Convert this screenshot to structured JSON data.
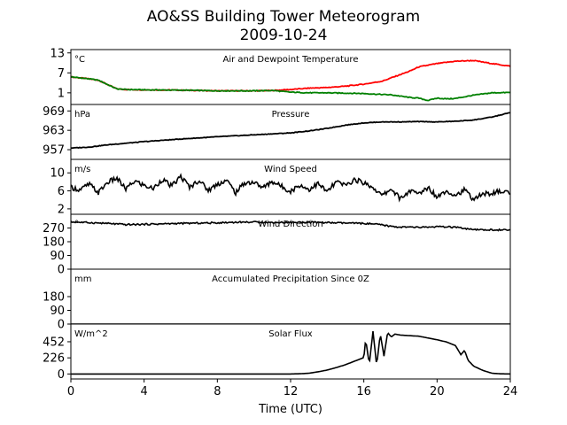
{
  "chart_data": {
    "type": "line",
    "title": "AO&SS Building Tower Meteorogram",
    "subtitle": "2009-10-24",
    "xlabel": "Time (UTC)",
    "xlim": [
      0,
      24
    ],
    "xticks": [
      0,
      4,
      8,
      12,
      16,
      20,
      24
    ],
    "panels": [
      {
        "name": "Air and Dewpoint Temperature",
        "unit": "°C",
        "ylim": [
          -2.5,
          14
        ],
        "yticks": [
          13,
          7,
          1
        ],
        "series": [
          {
            "color": "#ff0000",
            "x": [
              0,
              1,
              1.5,
              2,
              2.5,
              3,
              4,
              6,
              8,
              10,
              11,
              12,
              13,
              14,
              15,
              16,
              17,
              17.5,
              18,
              18.5,
              19,
              20,
              21,
              22,
              23,
              24
            ],
            "y": [
              5.8,
              5.2,
              4.8,
              3.5,
              2.2,
              2.0,
              1.9,
              1.8,
              1.6,
              1.6,
              1.7,
              2.0,
              2.4,
              2.6,
              3.0,
              3.6,
              4.5,
              5.5,
              6.5,
              7.5,
              8.8,
              9.8,
              10.5,
              10.7,
              9.8,
              9.0
            ]
          },
          {
            "color": "#008000",
            "x": [
              0,
              1,
              1.5,
              2,
              2.5,
              3,
              4,
              6,
              8,
              10,
              11,
              12,
              13,
              14,
              15,
              16,
              17,
              17.5,
              18,
              18.5,
              19,
              19.5,
              20,
              20.5,
              21,
              22,
              23,
              24
            ],
            "y": [
              5.8,
              5.2,
              4.8,
              3.5,
              2.2,
              2.0,
              1.9,
              1.8,
              1.6,
              1.6,
              1.7,
              1.2,
              1.0,
              1.0,
              0.9,
              0.8,
              0.5,
              0.4,
              0.0,
              -0.4,
              -0.6,
              -1.3,
              -0.6,
              -0.8,
              -0.7,
              0.3,
              1.0,
              1.1
            ]
          }
        ]
      },
      {
        "name": "Pressure",
        "unit": "hPa",
        "ylim": [
          954,
          971
        ],
        "yticks": [
          969,
          963,
          957
        ],
        "series": [
          {
            "color": "#000000",
            "x": [
              0,
              1,
              2,
              4,
              6,
              8,
              10,
              12,
              13,
              14,
              15,
              16,
              17,
              18,
              19,
              20,
              21,
              22,
              23,
              24
            ],
            "y": [
              957.5,
              957.8,
              958.5,
              959.5,
              960.3,
              961,
              961.6,
              962.2,
              962.8,
              963.6,
              964.6,
              965.3,
              965.6,
              965.6,
              965.7,
              965.6,
              965.8,
              966.2,
              967.1,
              968.5
            ]
          }
        ]
      },
      {
        "name": "Wind Speed",
        "unit": "m/s",
        "ylim": [
          0.8,
          13
        ],
        "yticks": [
          10,
          6,
          2
        ],
        "series": [
          {
            "color": "#000000",
            "x": [
              0,
              0.5,
              1,
              1.5,
              2,
              2.5,
              3,
              3.5,
              4,
              4.5,
              5,
              5.5,
              6,
              6.5,
              7,
              7.5,
              8,
              8.5,
              9,
              9.5,
              10,
              10.5,
              11,
              11.5,
              12,
              12.5,
              13,
              13.5,
              14,
              14.5,
              15,
              15.5,
              16,
              16.5,
              17,
              17.5,
              18,
              18.5,
              19,
              19.5,
              20,
              20.5,
              21,
              21.5,
              22,
              22.5,
              23,
              23.5,
              24
            ],
            "y": [
              6.8,
              6.2,
              7.5,
              5.6,
              7.9,
              8.8,
              6.4,
              8.2,
              7.2,
              6.5,
              8.6,
              7.0,
              9.2,
              6.8,
              8.4,
              6.1,
              7.5,
              8.4,
              5.6,
              7.8,
              7.9,
              6.7,
              8.1,
              7.0,
              5.9,
              7.3,
              6.3,
              7.6,
              5.8,
              8.0,
              7.2,
              8.5,
              7.8,
              6.8,
              4.9,
              6.5,
              4.2,
              6.0,
              5.3,
              6.8,
              4.7,
              6.1,
              5.0,
              6.2,
              4.1,
              5.3,
              5.5,
              5.9,
              5.6
            ]
          }
        ]
      },
      {
        "name": "Wind Direction",
        "unit": "°",
        "ylim": [
          0,
          360
        ],
        "yticks": [
          270,
          180,
          90,
          0
        ],
        "series": [
          {
            "color": "#000000",
            "x": [
              0,
              1,
              2,
              3,
              4,
              5,
              6,
              7,
              8,
              9,
              10,
              11,
              12,
              13,
              14,
              15,
              16,
              16.5,
              17,
              17.5,
              18,
              19,
              20,
              21,
              21.5,
              22,
              23,
              24
            ],
            "y": [
              310,
              305,
              300,
              292,
              294,
              297,
              300,
              302,
              304,
              308,
              309,
              306,
              307,
              308,
              305,
              302,
              300,
              296,
              290,
              280,
              276,
              274,
              278,
              275,
              266,
              258,
              258,
              256
            ]
          }
        ]
      },
      {
        "name": "Accumulated Precipitation Since 0Z",
        "unit": "mm",
        "ylim": [
          0,
          360
        ],
        "yticks": [
          180,
          90,
          0
        ],
        "series": [
          {
            "color": "#000000",
            "x": [
              0,
              24
            ],
            "y": [
              0,
              0
            ]
          }
        ]
      },
      {
        "name": "Solar Flux",
        "unit": "W/m^2",
        "ylim": [
          -70,
          700
        ],
        "yticks": [
          452,
          226,
          0
        ],
        "series": [
          {
            "color": "#000000",
            "x": [
              0,
              12,
              12.5,
              13,
              13.5,
              14,
              14.5,
              15,
              15.5,
              16,
              16.1,
              16.3,
              16.5,
              16.7,
              16.9,
              17.1,
              17.3,
              17.5,
              17.7,
              18,
              19,
              20,
              20.5,
              21,
              21.3,
              21.5,
              21.7,
              22,
              22.5,
              23,
              23.5,
              24
            ],
            "y": [
              0,
              0,
              3,
              10,
              30,
              55,
              90,
              130,
              180,
              230,
              480,
              140,
              600,
              120,
              560,
              250,
              580,
              520,
              560,
              545,
              530,
              480,
              450,
              400,
              270,
              330,
              190,
              110,
              50,
              10,
              2,
              0
            ]
          }
        ]
      }
    ]
  }
}
